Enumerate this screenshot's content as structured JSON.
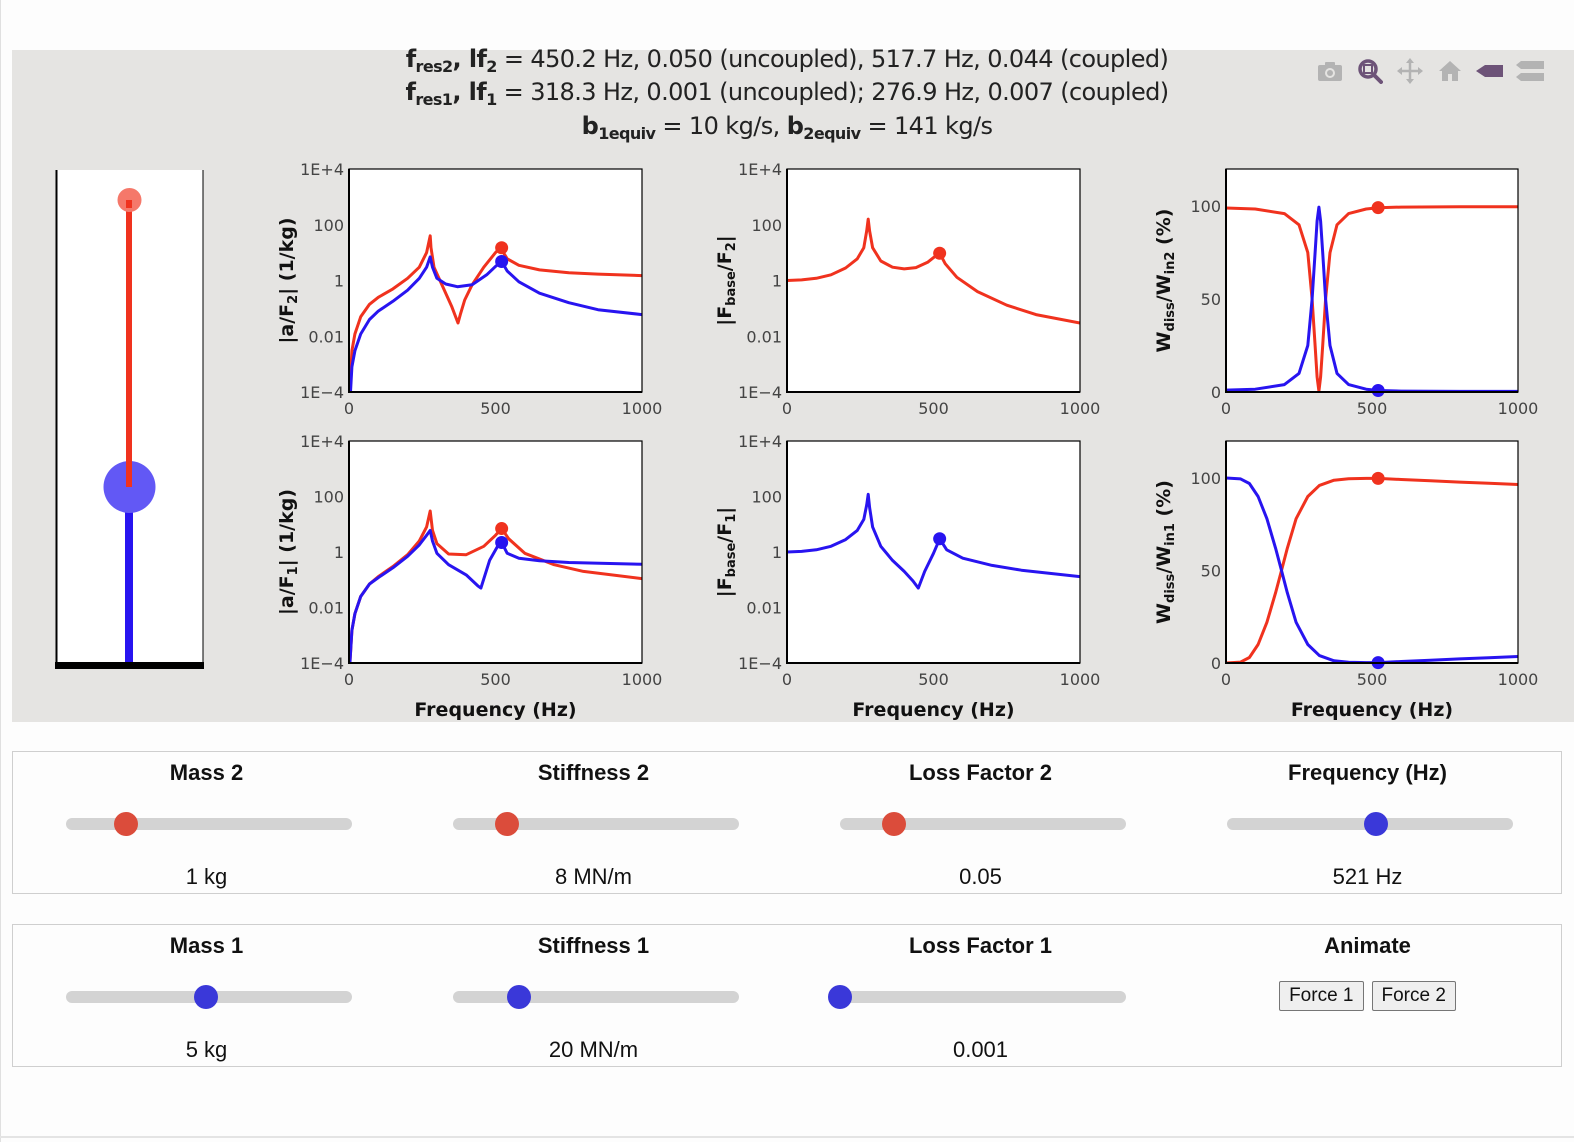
{
  "header": {
    "line1": {
      "sym1": "f",
      "sub1": "res2",
      "sep": ", ",
      "sym2": "lf",
      "sub2": "2",
      "text": " = 450.2 Hz, 0.050 (uncoupled), 517.7 Hz, 0.044 (coupled)"
    },
    "line2": {
      "sym1": "f",
      "sub1": "res1",
      "sep": ", ",
      "sym2": "lf",
      "sub2": "1",
      "text": " = 318.3 Hz, 0.001 (uncoupled); 276.9 Hz, 0.007 (coupled)"
    },
    "line3": {
      "sym1": "b",
      "sub1": "1equiv",
      "mid": " = 10 kg/s, ",
      "sym2": "b",
      "sub2": "2equiv",
      "text": " = 141 kg/s"
    }
  },
  "modebar": [
    {
      "name": "download-plot-icon",
      "title": "Download plot as a png"
    },
    {
      "name": "zoom-icon",
      "title": "Zoom",
      "active": true
    },
    {
      "name": "pan-icon",
      "title": "Pan"
    },
    {
      "name": "reset-axes-icon",
      "title": "Reset axes"
    },
    {
      "name": "show-closest-icon",
      "title": "Show closest data on hover"
    },
    {
      "name": "compare-data-icon",
      "title": "Compare data on hover"
    }
  ],
  "colors": {
    "mass2": "#f0321e",
    "mass1": "#2814f0",
    "mass2_ball": "#f5786a",
    "mass1_ball": "#6258f5",
    "slider_red": "#db4c3b",
    "slider_blue": "#3a38d9",
    "panel_bg": "#e5e4e2"
  },
  "schematic": {
    "mass2_position": 0.06,
    "mass1_position": 0.64
  },
  "chart_data": [
    {
      "id": "aF2",
      "type": "line",
      "ylabel": "|a/F2| (1/kg)",
      "ylabel_main": "|a/F",
      "ylabel_sub": "2",
      "ylabel_tail": "| (1/kg)",
      "xlabel": "",
      "yscale": "log",
      "ylim": [
        0.0001,
        10000
      ],
      "xlim": [
        0,
        1000
      ],
      "yticks": [
        "1E+4",
        "100",
        "1",
        "0.01",
        "1E−4"
      ],
      "ytick_values": [
        10000,
        100,
        1,
        0.01,
        0.0001
      ],
      "xticks": [
        "0",
        "500",
        "1000"
      ],
      "xtick_values": [
        0,
        500,
        1000
      ],
      "series": [
        {
          "name": "mass2",
          "color": "mass2",
          "x": [
            3,
            10,
            20,
            40,
            70,
            100,
            150,
            200,
            240,
            265,
            277,
            280,
            290,
            320,
            350,
            372,
            380,
            395,
            420,
            460,
            500,
            517,
            540,
            580,
            650,
            750,
            850,
            1000
          ],
          "y": [
            0.0001,
            0.003,
            0.012,
            0.05,
            0.14,
            0.25,
            0.5,
            1.2,
            3,
            10,
            40,
            15,
            3,
            0.6,
            0.12,
            0.03,
            0.06,
            0.2,
            0.7,
            3,
            10,
            15,
            6,
            3.5,
            2.4,
            1.9,
            1.7,
            1.5
          ]
        },
        {
          "name": "mass1",
          "color": "mass1",
          "x": [
            5,
            10,
            20,
            40,
            70,
            100,
            150,
            200,
            240,
            265,
            277,
            285,
            300,
            330,
            370,
            420,
            470,
            500,
            521,
            540,
            580,
            650,
            750,
            850,
            1000
          ],
          "y": [
            0.0001,
            0.0008,
            0.003,
            0.012,
            0.04,
            0.08,
            0.18,
            0.45,
            1.2,
            3,
            7,
            3,
            1.2,
            0.75,
            0.6,
            0.7,
            1.6,
            3.2,
            4.8,
            2.2,
            0.9,
            0.35,
            0.16,
            0.09,
            0.06
          ]
        }
      ],
      "markers": [
        {
          "series": "mass2",
          "x": 521,
          "y": 15
        },
        {
          "series": "mass1",
          "x": 521,
          "y": 4.8
        }
      ]
    },
    {
      "id": "FbF2",
      "type": "line",
      "ylabel": "|Fbase/F2|",
      "ylabel_main": "|F",
      "ylabel_sub": "base",
      "ylabel_mid": "/F",
      "ylabel_sub2": "2",
      "ylabel_tail": "|",
      "xlabel": "",
      "yscale": "log",
      "ylim": [
        0.0001,
        10000
      ],
      "xlim": [
        0,
        1000
      ],
      "yticks": [
        "1E+4",
        "100",
        "1",
        "0.01",
        "1E−4"
      ],
      "ytick_values": [
        10000,
        100,
        1,
        0.01,
        0.0001
      ],
      "xticks": [
        "0",
        "500",
        "1000"
      ],
      "xtick_values": [
        0,
        500,
        1000
      ],
      "series": [
        {
          "name": "mass2",
          "color": "mass2",
          "x": [
            0,
            50,
            100,
            150,
            200,
            240,
            262,
            272,
            277,
            282,
            292,
            320,
            360,
            400,
            440,
            480,
            510,
            521,
            540,
            580,
            650,
            750,
            850,
            1000
          ],
          "y": [
            1,
            1.05,
            1.2,
            1.6,
            2.8,
            6,
            15,
            60,
            160,
            60,
            15,
            5,
            3,
            2.6,
            2.9,
            4.5,
            8,
            9.5,
            4,
            1.3,
            0.4,
            0.13,
            0.06,
            0.03
          ]
        }
      ],
      "markers": [
        {
          "series": "mass2",
          "x": 521,
          "y": 9.5
        }
      ]
    },
    {
      "id": "W2",
      "type": "line",
      "ylabel": "Wdiss/Win2 (%)",
      "ylabel_main": "W",
      "ylabel_sub": "diss",
      "ylabel_mid": "/W",
      "ylabel_sub2": "in2",
      "ylabel_tail": " (%)",
      "xlabel": "",
      "yscale": "linear",
      "ylim": [
        0,
        120
      ],
      "xlim": [
        0,
        1000
      ],
      "yticks": [
        "100",
        "50",
        "0"
      ],
      "ytick_values": [
        100,
        50,
        0
      ],
      "xticks": [
        "0",
        "500",
        "1000"
      ],
      "xtick_values": [
        0,
        500,
        1000
      ],
      "series": [
        {
          "name": "mass2",
          "color": "mass2",
          "x": [
            0,
            100,
            200,
            250,
            280,
            295,
            305,
            312,
            318,
            324,
            331,
            341,
            356,
            380,
            420,
            480,
            521,
            600,
            800,
            1000
          ],
          "y": [
            99,
            98.5,
            96,
            90,
            75,
            50,
            25,
            8,
            0.5,
            8,
            25,
            50,
            75,
            90,
            96,
            98.5,
            99.2,
            99.5,
            99.7,
            99.7
          ]
        },
        {
          "name": "mass1",
          "color": "mass1",
          "x": [
            0,
            100,
            200,
            250,
            280,
            295,
            305,
            312,
            318,
            324,
            331,
            341,
            356,
            380,
            420,
            480,
            521,
            600,
            800,
            1000
          ],
          "y": [
            1,
            1.5,
            4,
            10,
            25,
            50,
            75,
            92,
            99.5,
            92,
            75,
            50,
            25,
            10,
            4,
            1.5,
            0.8,
            0.5,
            0.3,
            0.3
          ]
        }
      ],
      "markers": [
        {
          "series": "mass2",
          "x": 521,
          "y": 99.2
        },
        {
          "series": "mass1",
          "x": 521,
          "y": 0.8
        }
      ]
    },
    {
      "id": "aF1",
      "type": "line",
      "ylabel": "|a/F1| (1/kg)",
      "ylabel_main": "|a/F",
      "ylabel_sub": "1",
      "ylabel_tail": "| (1/kg)",
      "xlabel": "Frequency (Hz)",
      "yscale": "log",
      "ylim": [
        0.0001,
        10000
      ],
      "xlim": [
        0,
        1000
      ],
      "yticks": [
        "1E+4",
        "100",
        "1",
        "0.01",
        "1E−4"
      ],
      "ytick_values": [
        10000,
        100,
        1,
        0.01,
        0.0001
      ],
      "xticks": [
        "0",
        "500",
        "1000"
      ],
      "xtick_values": [
        0,
        500,
        1000
      ],
      "series": [
        {
          "name": "mass2",
          "color": "mass2",
          "x": [
            3,
            10,
            20,
            40,
            70,
            100,
            150,
            200,
            240,
            265,
            277,
            285,
            300,
            340,
            400,
            460,
            500,
            521,
            545,
            600,
            700,
            800,
            1000
          ],
          "y": [
            0.0001,
            0.0015,
            0.006,
            0.025,
            0.07,
            0.13,
            0.3,
            0.8,
            2.5,
            8,
            30,
            6,
            2,
            0.85,
            0.8,
            1.6,
            4,
            7,
            3,
            0.9,
            0.35,
            0.2,
            0.11
          ]
        },
        {
          "name": "mass1",
          "color": "mass1",
          "x": [
            3,
            10,
            20,
            40,
            70,
            100,
            150,
            200,
            240,
            265,
            277,
            285,
            300,
            340,
            400,
            440,
            450,
            480,
            510,
            521,
            540,
            580,
            650,
            750,
            1000
          ],
          "y": [
            0.0001,
            0.0015,
            0.006,
            0.025,
            0.07,
            0.12,
            0.27,
            0.7,
            1.8,
            4,
            6,
            2.5,
            0.9,
            0.35,
            0.15,
            0.06,
            0.05,
            0.5,
            1.8,
            2.2,
            0.9,
            0.6,
            0.48,
            0.42,
            0.36
          ]
        }
      ],
      "markers": [
        {
          "series": "mass2",
          "x": 521,
          "y": 7
        },
        {
          "series": "mass1",
          "x": 521,
          "y": 2.2
        }
      ]
    },
    {
      "id": "FbF1",
      "type": "line",
      "ylabel": "|Fbase/F1|",
      "ylabel_main": "|F",
      "ylabel_sub": "base",
      "ylabel_mid": "/F",
      "ylabel_sub2": "1",
      "ylabel_tail": "|",
      "xlabel": "Frequency (Hz)",
      "yscale": "log",
      "ylim": [
        0.0001,
        10000
      ],
      "xlim": [
        0,
        1000
      ],
      "yticks": [
        "1E+4",
        "100",
        "1",
        "0.01",
        "1E−4"
      ],
      "ytick_values": [
        10000,
        100,
        1,
        0.01,
        0.0001
      ],
      "xticks": [
        "0",
        "500",
        "1000"
      ],
      "xtick_values": [
        0,
        500,
        1000
      ],
      "series": [
        {
          "name": "mass1",
          "color": "mass1",
          "x": [
            0,
            50,
            100,
            150,
            200,
            240,
            262,
            272,
            277,
            282,
            292,
            320,
            360,
            400,
            430,
            448,
            470,
            500,
            521,
            545,
            600,
            700,
            800,
            1000
          ],
          "y": [
            1,
            1.05,
            1.2,
            1.6,
            2.8,
            6,
            15,
            50,
            120,
            40,
            8,
            1.6,
            0.5,
            0.2,
            0.09,
            0.05,
            0.2,
            0.9,
            3,
            1.2,
            0.6,
            0.33,
            0.22,
            0.13
          ]
        }
      ],
      "markers": [
        {
          "series": "mass1",
          "x": 521,
          "y": 3
        }
      ]
    },
    {
      "id": "W1",
      "type": "line",
      "ylabel": "Wdiss/Win1 (%)",
      "ylabel_main": "W",
      "ylabel_sub": "diss",
      "ylabel_mid": "/W",
      "ylabel_sub2": "in1",
      "ylabel_tail": " (%)",
      "xlabel": "Frequency (Hz)",
      "yscale": "linear",
      "ylim": [
        0,
        120
      ],
      "xlim": [
        0,
        1000
      ],
      "yticks": [
        "100",
        "50",
        "0"
      ],
      "ytick_values": [
        100,
        50,
        0
      ],
      "xticks": [
        "0",
        "500",
        "1000"
      ],
      "xtick_values": [
        0,
        500,
        1000
      ],
      "series": [
        {
          "name": "mass2",
          "color": "mass2",
          "x": [
            0,
            50,
            80,
            110,
            140,
            170,
            190,
            210,
            240,
            280,
            320,
            370,
            420,
            480,
            521,
            600,
            700,
            800,
            900,
            1000
          ],
          "y": [
            0,
            0.5,
            3,
            10,
            22,
            38,
            50,
            62,
            78,
            90,
            96,
            98.8,
            99.6,
            99.8,
            99.8,
            99.2,
            98.5,
            97.8,
            97.2,
            96.5
          ]
        },
        {
          "name": "mass1",
          "color": "mass1",
          "x": [
            0,
            50,
            80,
            110,
            140,
            170,
            190,
            210,
            240,
            280,
            320,
            370,
            420,
            480,
            521,
            600,
            700,
            800,
            900,
            1000
          ],
          "y": [
            100,
            99.5,
            97,
            90,
            78,
            62,
            50,
            38,
            22,
            10,
            4,
            1.2,
            0.4,
            0.2,
            0.2,
            0.8,
            1.5,
            2.2,
            2.8,
            3.5
          ]
        }
      ],
      "markers": [
        {
          "series": "mass2",
          "x": 521,
          "y": 99.8
        },
        {
          "series": "mass1",
          "x": 521,
          "y": 0.2
        }
      ]
    }
  ],
  "controls": {
    "row2": [
      {
        "name": "mass-2-slider",
        "title": "Mass 2",
        "value": "1 kg",
        "fraction": 0.21,
        "color": "slider_red"
      },
      {
        "name": "stiffness-2-slider",
        "title": "Stiffness 2",
        "value": "8 MN/m",
        "fraction": 0.19,
        "color": "slider_red"
      },
      {
        "name": "loss-factor-2-slider",
        "title": "Loss Factor 2",
        "value": "0.05",
        "fraction": 0.19,
        "color": "slider_red"
      },
      {
        "name": "frequency-slider",
        "title": "Frequency (Hz)",
        "value": "521 Hz",
        "fraction": 0.52,
        "color": "slider_blue"
      }
    ],
    "row1": [
      {
        "name": "mass-1-slider",
        "title": "Mass 1",
        "value": "5 kg",
        "fraction": 0.49,
        "color": "slider_blue"
      },
      {
        "name": "stiffness-1-slider",
        "title": "Stiffness 1",
        "value": "20 MN/m",
        "fraction": 0.23,
        "color": "slider_blue"
      },
      {
        "name": "loss-factor-1-slider",
        "title": "Loss Factor 1",
        "value": "0.001",
        "fraction": 0.0,
        "color": "slider_blue"
      }
    ],
    "animate": {
      "title": "Animate",
      "buttons": [
        "Force 1",
        "Force 2"
      ]
    }
  }
}
